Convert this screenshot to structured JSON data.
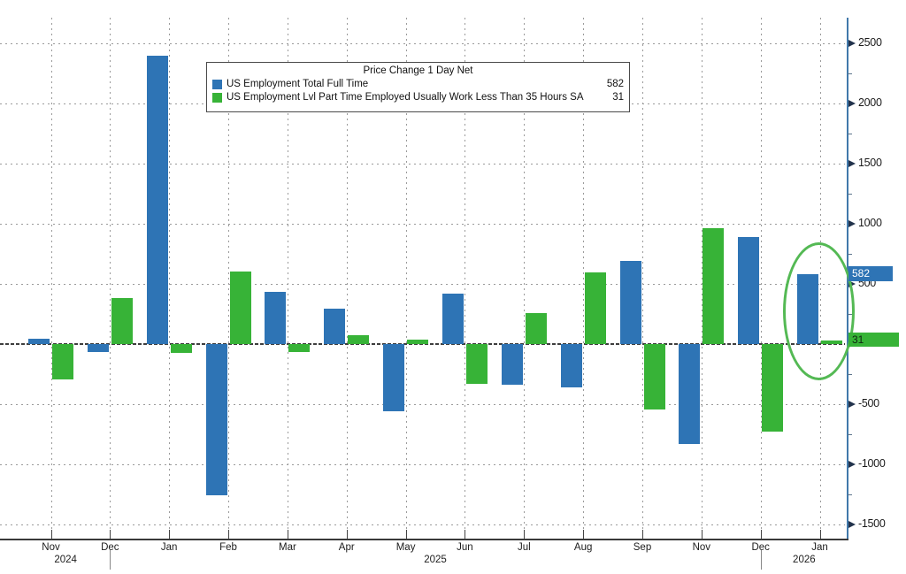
{
  "chart_data": {
    "type": "bar",
    "title": "Price Change 1 Day Net",
    "categories": [
      "Nov",
      "Dec",
      "Jan",
      "Feb",
      "Mar",
      "Apr",
      "May",
      "Jun",
      "Jul",
      "Aug",
      "Sep",
      "Nov",
      "Dec",
      "Jan"
    ],
    "x_years": [
      {
        "label": "2024",
        "from": 0,
        "to": 1
      },
      {
        "label": "2025",
        "from": 2,
        "to": 12
      },
      {
        "label": "2026",
        "from": 13,
        "to": 13
      }
    ],
    "note_visible_in_axis": "Oct 2025 is absent between Sep and Nov",
    "series": [
      {
        "key": "full-time",
        "name": "US Employment Total Full Time",
        "color": "#2e74b5",
        "last_value_label": "582",
        "values": [
          45,
          -65,
          2400,
          -1260,
          435,
          295,
          -560,
          420,
          -340,
          -360,
          690,
          -830,
          890,
          582
        ]
      },
      {
        "key": "part-time",
        "name": "US Employment Lvl Part Time Employed Usually Work Less Than 35 Hours SA",
        "color": "#37b337",
        "last_value_label": "31",
        "values": [
          -295,
          380,
          -75,
          605,
          -65,
          75,
          35,
          -330,
          255,
          595,
          -545,
          960,
          -730,
          31
        ]
      }
    ],
    "y_axis": {
      "side": "right",
      "major_ticks": [
        2500,
        2000,
        1500,
        1000,
        500,
        0,
        -500,
        -1000,
        -1500
      ],
      "labeled_ticks": [
        2500,
        2000,
        1500,
        1000,
        500,
        -500,
        -1000,
        -1500
      ],
      "minor_tick_step": 250,
      "visible_range": [
        -1625,
        2715
      ]
    },
    "grid": "dotted horizontal and vertical",
    "legend_position": "top-center",
    "annotation": "green ellipse circling the Jan 2026 bar pair"
  },
  "legend": {
    "title": "Price Change 1 Day Net",
    "rows": [
      {
        "label": "US Employment Total Full Time",
        "value": "582"
      },
      {
        "label": "US Employment Lvl Part Time Employed Usually Work Less Than 35 Hours SA",
        "value": "31"
      }
    ]
  },
  "axis_tags": [
    {
      "text": "582",
      "bg": "#2e74b5",
      "fg": "#ffffff"
    },
    {
      "text": "31",
      "bg": "#37b337",
      "fg": "#0e2410"
    }
  ],
  "colors": {
    "full_time_blue": "#2e74b5",
    "part_time_green": "#37b337",
    "axis_line_blue": "#4179ab",
    "ellipse_green": "#54b954",
    "gridline_gray": "#9a9a9a"
  }
}
